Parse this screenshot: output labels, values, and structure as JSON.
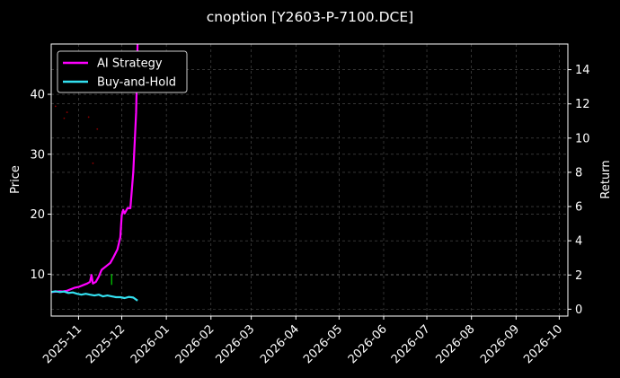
{
  "chart_data": {
    "type": "line",
    "title": "cnoption [Y2603-P-7100.DCE]",
    "xlabel": "",
    "ylabel": "Price",
    "y2label": "Return",
    "x_ticks": [
      "2025-11",
      "2025-12",
      "2026-01",
      "2026-02",
      "2026-03",
      "2026-04",
      "2026-05",
      "2026-06",
      "2026-07",
      "2026-08",
      "2026-09",
      "2026-10"
    ],
    "xlim": [
      "2025-10-13",
      "2026-10-07"
    ],
    "y_ticks": [
      10,
      20,
      30,
      40
    ],
    "ylim": [
      3.0,
      48.4
    ],
    "y2_ticks": [
      0,
      2,
      4,
      6,
      8,
      10,
      12,
      14
    ],
    "y2lim": [
      -0.4,
      15.5
    ],
    "grid": true,
    "legend_position": "top-left",
    "colors": {
      "background": "#000000",
      "grid": "#555555",
      "text": "#ffffff"
    },
    "series": [
      {
        "name": "AI Strategy",
        "color": "#ff00ff",
        "axis": "right",
        "points": [
          [
            "2025-10-13",
            1.0
          ],
          [
            "2025-10-16",
            1.02
          ],
          [
            "2025-10-19",
            1.05
          ],
          [
            "2025-10-21",
            1.04
          ],
          [
            "2025-10-24",
            1.08
          ],
          [
            "2025-10-26",
            1.15
          ],
          [
            "2025-10-29",
            1.25
          ],
          [
            "2025-11-01",
            1.3
          ],
          [
            "2025-11-04",
            1.4
          ],
          [
            "2025-11-07",
            1.5
          ],
          [
            "2025-11-09",
            1.6
          ],
          [
            "2025-11-10",
            2.0
          ],
          [
            "2025-11-11",
            1.5
          ],
          [
            "2025-11-13",
            1.6
          ],
          [
            "2025-11-15",
            1.9
          ],
          [
            "2025-11-17",
            2.3
          ],
          [
            "2025-11-20",
            2.5
          ],
          [
            "2025-11-23",
            2.7
          ],
          [
            "2025-11-25",
            3.0
          ],
          [
            "2025-11-28",
            3.5
          ],
          [
            "2025-11-30",
            4.2
          ],
          [
            "2025-12-01",
            5.5
          ],
          [
            "2025-12-02",
            5.8
          ],
          [
            "2025-12-03",
            5.6
          ],
          [
            "2025-12-05",
            5.9
          ],
          [
            "2025-12-07",
            5.9
          ],
          [
            "2025-12-09",
            8.0
          ],
          [
            "2025-12-11",
            11.5
          ],
          [
            "2025-12-12",
            15.5
          ]
        ]
      },
      {
        "name": "Buy-and-Hold",
        "color": "#33e0f0",
        "axis": "right",
        "points": [
          [
            "2025-10-13",
            1.0
          ],
          [
            "2025-10-16",
            1.05
          ],
          [
            "2025-10-19",
            1.0
          ],
          [
            "2025-10-22",
            1.03
          ],
          [
            "2025-10-25",
            0.95
          ],
          [
            "2025-10-28",
            0.98
          ],
          [
            "2025-10-31",
            0.9
          ],
          [
            "2025-11-03",
            0.85
          ],
          [
            "2025-11-06",
            0.9
          ],
          [
            "2025-11-09",
            0.85
          ],
          [
            "2025-11-12",
            0.8
          ],
          [
            "2025-11-15",
            0.85
          ],
          [
            "2025-11-18",
            0.75
          ],
          [
            "2025-11-21",
            0.8
          ],
          [
            "2025-11-24",
            0.75
          ],
          [
            "2025-11-27",
            0.7
          ],
          [
            "2025-11-30",
            0.7
          ],
          [
            "2025-12-03",
            0.65
          ],
          [
            "2025-12-06",
            0.72
          ],
          [
            "2025-12-09",
            0.68
          ],
          [
            "2025-12-12",
            0.5
          ]
        ]
      }
    ],
    "price_markers": {
      "color": "#8b0000",
      "points": [
        [
          "2025-10-16",
          38.0
        ],
        [
          "2025-10-22",
          36.0
        ],
        [
          "2025-10-24",
          37.0
        ],
        [
          "2025-11-08",
          36.2
        ],
        [
          "2025-11-14",
          34.2
        ],
        [
          "2025-11-11",
          28.5
        ]
      ]
    },
    "signal_bars": {
      "color": "#00b000",
      "bars": [
        [
          "2025-11-24",
          8.2,
          10.0
        ]
      ]
    }
  }
}
